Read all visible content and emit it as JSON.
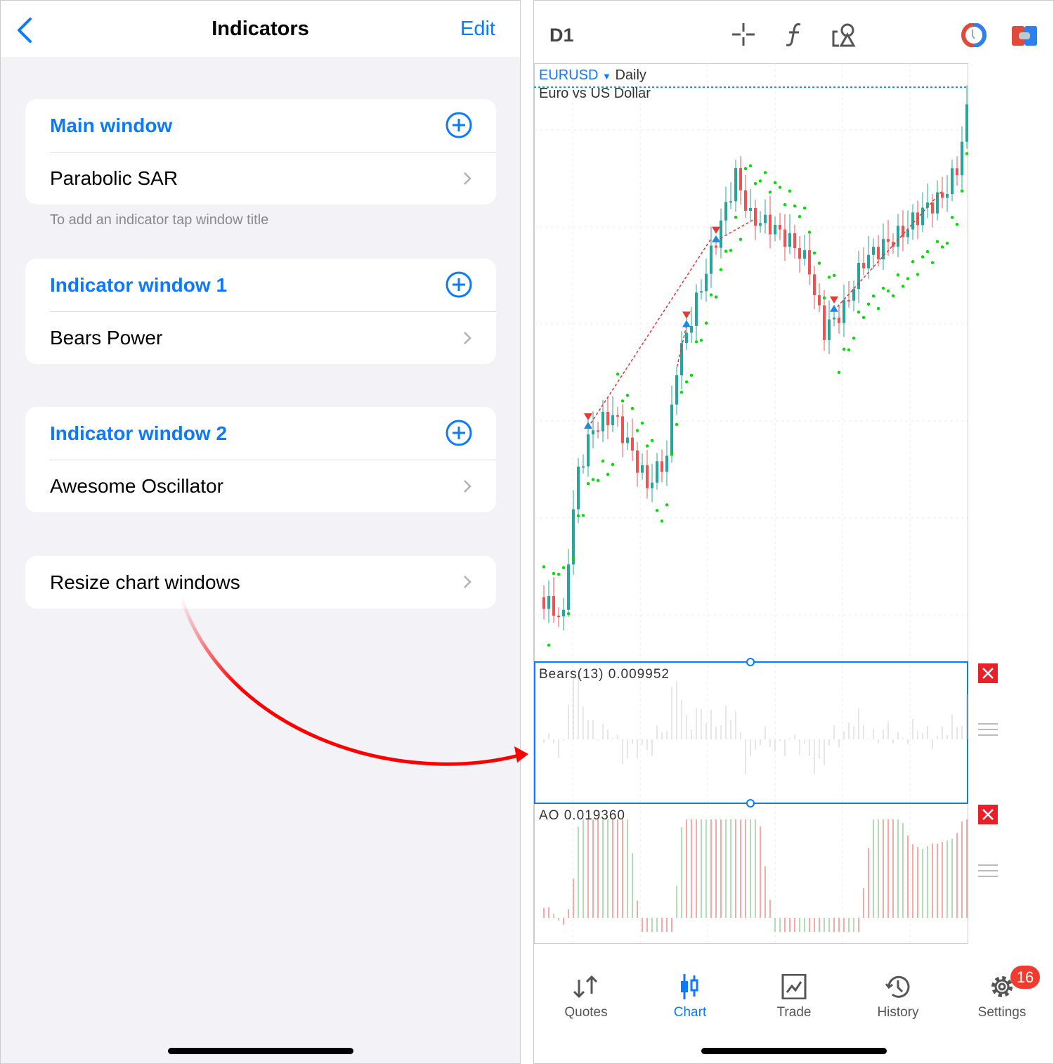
{
  "indicators": {
    "title": "Indicators",
    "edit_label": "Edit",
    "sections": [
      {
        "title": "Main window",
        "items": [
          "Parabolic SAR"
        ]
      },
      {
        "title": "Indicator window 1",
        "items": [
          "Bears Power"
        ]
      },
      {
        "title": "Indicator window 2",
        "items": [
          "Awesome Oscillator"
        ]
      }
    ],
    "hint": "To add an indicator tap window title",
    "resize_label": "Resize chart windows"
  },
  "chart": {
    "timeframe": "D1",
    "symbol": "EURUSD",
    "period": "Daily",
    "description": "Euro vs US Dollar",
    "bears_label": "Bears(13) 0.009952",
    "ao_label": "AO 0.019360",
    "colors": {
      "bull": "#26a69a",
      "bear": "#ef5350",
      "sar": "#00e000",
      "accent": "#0a7aff"
    }
  },
  "tabbar": {
    "tabs": [
      {
        "label": "Quotes",
        "icon": "quotes-arrows-icon"
      },
      {
        "label": "Chart",
        "icon": "candlestick-icon",
        "active": true
      },
      {
        "label": "Trade",
        "icon": "trade-chart-icon"
      },
      {
        "label": "History",
        "icon": "history-clock-icon"
      },
      {
        "label": "Settings",
        "icon": "gear-icon",
        "badge": "16"
      }
    ]
  }
}
